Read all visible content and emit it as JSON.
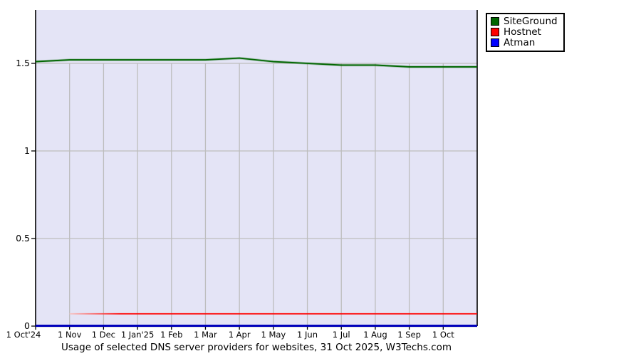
{
  "title": "Usage of selected DNS server providers for websites, 31 Oct 2025, W3Techs.com",
  "colors": {
    "plot_background": "#e4e4f6",
    "grid": "#bdbdbd",
    "axis": "#000000",
    "siteground_green": "#006600",
    "hostnet_red": "#ff0000",
    "atman_blue": "#0000ff",
    "atman_line": "#0000bb",
    "hostnet_fade_start": "#f6c6c6"
  },
  "legend": {
    "items": [
      {
        "label": "SiteGround",
        "color": "#006600"
      },
      {
        "label": "Hostnet",
        "color": "#ff0000"
      },
      {
        "label": "Atman",
        "color": "#0000ff"
      }
    ]
  },
  "axes": {
    "y_tick_labels": [
      "1.5",
      "1",
      "0.5",
      "0"
    ],
    "y_tick_values": [
      1.5,
      1,
      0.5,
      0
    ],
    "x_tick_labels": [
      "1 Oct'24",
      "1 Nov",
      "1 Dec",
      "1 Jan'25",
      "1 Feb",
      "1 Mar",
      "1 Apr",
      "1 May",
      "1 Jun",
      "1 Jul",
      "1 Aug",
      "1 Sep",
      "1 Oct"
    ]
  },
  "chart_data": {
    "type": "line",
    "title": "Usage of selected DNS server providers for websites, 31 Oct 2025, W3Techs.com",
    "x": [
      "1 Oct'24",
      "1 Nov",
      "1 Dec",
      "1 Jan'25",
      "1 Feb",
      "1 Mar",
      "1 Apr",
      "1 May",
      "1 Jun",
      "1 Jul",
      "1 Aug",
      "1 Sep",
      "1 Oct",
      "31 Oct"
    ],
    "xlabel": "",
    "ylabel": "",
    "ylim": [
      0,
      1.8
    ],
    "y_ticks": [
      0,
      0.5,
      1,
      1.5
    ],
    "grid": true,
    "legend_position": "outside-top-right",
    "series": [
      {
        "name": "SiteGround",
        "color": "#006600",
        "values": [
          1.51,
          1.52,
          1.52,
          1.52,
          1.52,
          1.52,
          1.53,
          1.51,
          1.5,
          1.49,
          1.49,
          1.48,
          1.48,
          1.48
        ]
      },
      {
        "name": "Hostnet",
        "color": "#ff0000",
        "values": [
          null,
          0.07,
          0.07,
          0.07,
          0.07,
          0.07,
          0.07,
          0.07,
          0.07,
          0.07,
          0.07,
          0.07,
          0.07,
          0.07
        ]
      },
      {
        "name": "Atman",
        "color": "#0000ff",
        "values": [
          0,
          0,
          0,
          0,
          0,
          0,
          0,
          0,
          0,
          0,
          0,
          0,
          0,
          0
        ]
      }
    ]
  }
}
